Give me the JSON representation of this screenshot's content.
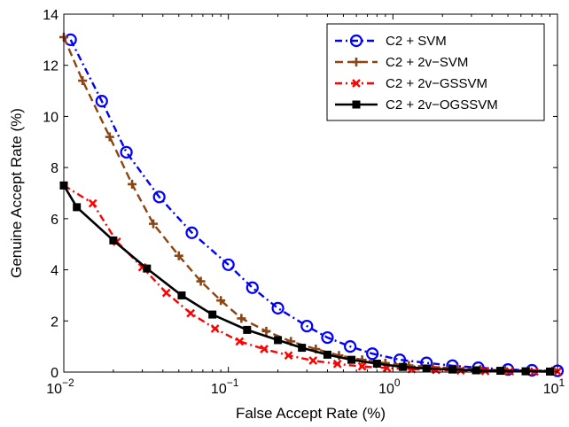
{
  "chart_data": {
    "type": "line",
    "title": "",
    "xlabel": "False Accept Rate (%)",
    "ylabel": "Genuine Accept Rate (%)",
    "xscale": "log",
    "xlim": [
      0.01,
      10
    ],
    "ylim": [
      0,
      14
    ],
    "xticks": [
      {
        "value": 0.01,
        "base": "10",
        "exp": "−2"
      },
      {
        "value": 0.1,
        "base": "10",
        "exp": "−1"
      },
      {
        "value": 1,
        "base": "10",
        "exp": "0"
      },
      {
        "value": 10,
        "base": "10",
        "exp": "1"
      }
    ],
    "yticks": [
      0,
      2,
      4,
      6,
      8,
      10,
      12,
      14
    ],
    "grid": false,
    "legend": "top-right",
    "series": [
      {
        "name": "C2 + SVM",
        "color": "#0000ff",
        "dash": "dashdot",
        "marker": "circle",
        "x": [
          0.011,
          0.017,
          0.024,
          0.038,
          0.06,
          0.1,
          0.14,
          0.2,
          0.3,
          0.4,
          0.55,
          0.75,
          1.1,
          1.6,
          2.3,
          3.3,
          5.0,
          7.0,
          10
        ],
        "y": [
          13.0,
          10.6,
          8.6,
          6.85,
          5.45,
          4.2,
          3.3,
          2.5,
          1.8,
          1.35,
          1.0,
          0.72,
          0.48,
          0.36,
          0.25,
          0.17,
          0.1,
          0.07,
          0.05
        ]
      },
      {
        "name": "C2 + 2v−SVM",
        "color": "#8b4513",
        "dash": "dashed",
        "marker": "plus",
        "x": [
          0.01,
          0.013,
          0.019,
          0.026,
          0.035,
          0.05,
          0.068,
          0.09,
          0.12,
          0.17,
          0.24,
          0.34,
          0.47,
          0.65,
          0.9,
          1.25,
          1.75,
          2.45,
          3.4,
          4.8,
          6.7,
          9.3
        ],
        "y": [
          13.1,
          11.4,
          9.2,
          7.35,
          5.8,
          4.55,
          3.55,
          2.8,
          2.1,
          1.6,
          1.2,
          0.9,
          0.65,
          0.48,
          0.35,
          0.26,
          0.19,
          0.14,
          0.1,
          0.07,
          0.05,
          0.04
        ]
      },
      {
        "name": "C2 + 2v−GSSVM",
        "color": "#ff0000",
        "dash": "dashdot",
        "marker": "x",
        "x": [
          0.01,
          0.015,
          0.021,
          0.03,
          0.042,
          0.059,
          0.083,
          0.117,
          0.165,
          0.232,
          0.327,
          0.46,
          0.65,
          0.92,
          1.3,
          1.83,
          2.58,
          3.64,
          5.13,
          7.24,
          10
        ],
        "y": [
          7.3,
          6.6,
          5.1,
          4.1,
          3.1,
          2.3,
          1.7,
          1.2,
          0.9,
          0.65,
          0.45,
          0.32,
          0.22,
          0.16,
          0.11,
          0.08,
          0.06,
          0.04,
          0.03,
          0.02,
          0.02
        ]
      },
      {
        "name": "C2 + 2v−OGSSVM",
        "color": "#000000",
        "dash": "solid",
        "marker": "square",
        "x": [
          0.01,
          0.012,
          0.02,
          0.032,
          0.052,
          0.08,
          0.13,
          0.2,
          0.28,
          0.4,
          0.56,
          0.8,
          1.15,
          1.6,
          2.3,
          3.2,
          4.5,
          6.4,
          9.0
        ],
        "y": [
          7.3,
          6.45,
          5.15,
          4.05,
          3.0,
          2.25,
          1.65,
          1.25,
          0.95,
          0.68,
          0.48,
          0.33,
          0.2,
          0.14,
          0.1,
          0.07,
          0.05,
          0.03,
          0.02
        ]
      }
    ]
  }
}
